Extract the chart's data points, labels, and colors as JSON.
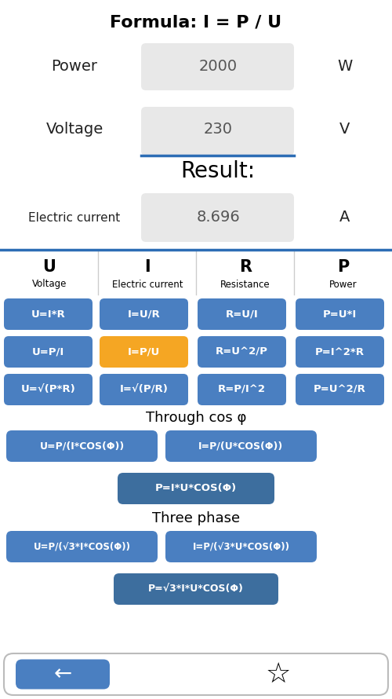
{
  "title": "Formula: I = P / U",
  "bg_color": "#ffffff",
  "input_bg": "#e8e8e8",
  "blue_btn": "#4a7fc1",
  "orange_btn": "#f5a623",
  "blue_dark_btn": "#3d6e9e",
  "headers": [
    "U",
    "I",
    "R",
    "P"
  ],
  "subheaders": [
    "Voltage",
    "Electric current",
    "Resistance",
    "Power"
  ],
  "grid_rows": [
    [
      "U=I*R",
      "I=U/R",
      "R=U/I",
      "P=U*I"
    ],
    [
      "U=P/I",
      "I=P/U",
      "R=U^2/P",
      "P=I^2*R"
    ],
    [
      "U=√(P*R)",
      "I=√(P/R)",
      "R=P/I^2",
      "P=U^2/R"
    ]
  ],
  "highlighted_cell": [
    1,
    1
  ],
  "cos_label": "Through cos φ",
  "cos_row1": [
    "U=P/(I*COS(Φ))",
    "I=P/(U*COS(Φ))"
  ],
  "cos_row2": "P=I*U*COS(Φ)",
  "three_label": "Three phase",
  "three_row1": [
    "U=P/(√3*I*COS(Φ))",
    "I=P/(√3*U*COS(Φ))"
  ],
  "three_row2": "P=√3*I*U*COS(Φ)",
  "back_arrow": "←",
  "star": "☆",
  "separator_color": "#2d6db5",
  "unit_color": "#222222",
  "label_color": "#222222"
}
